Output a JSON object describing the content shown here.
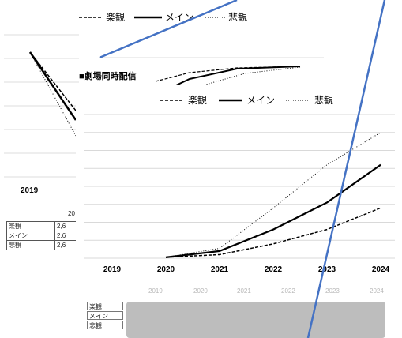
{
  "back_chart": {
    "legend": {
      "optimistic": "楽観",
      "main": "メイン",
      "pessimistic": "悲観"
    },
    "year_label": "2019",
    "table": {
      "header": "20",
      "rows": [
        {
          "label": "楽観",
          "value": "2,6"
        },
        {
          "label": "メイン",
          "value": "2,6"
        },
        {
          "label": "悲観",
          "value": "2,6"
        }
      ]
    }
  },
  "middle_chart": {
    "title": "■劇場同時配信"
  },
  "chart_data": {
    "type": "line",
    "title": "",
    "categories": [
      "2019",
      "2020",
      "2021",
      "2022",
      "2023",
      "2024"
    ],
    "series": [
      {
        "name": "楽観",
        "style": "dashed",
        "values": [
          null,
          0.1,
          0.4,
          1.6,
          3.2,
          5.6
        ]
      },
      {
        "name": "メイン",
        "style": "solid",
        "values": [
          null,
          0.1,
          0.8,
          3.2,
          6.2,
          10.4
        ]
      },
      {
        "name": "悲観",
        "style": "dotted",
        "values": [
          null,
          0.1,
          1.1,
          5.6,
          10.4,
          14.0
        ]
      }
    ],
    "ylim": [
      0,
      16
    ],
    "grid": true,
    "legend": "top",
    "colors": {
      "series": "#000000",
      "overlay_line": "#4472c4"
    }
  },
  "bottom_table": {
    "headers": [
      "2019",
      "2020",
      "2021",
      "2022",
      "2023",
      "2024"
    ],
    "rows": [
      "楽観",
      "メイン",
      "悲観"
    ]
  }
}
